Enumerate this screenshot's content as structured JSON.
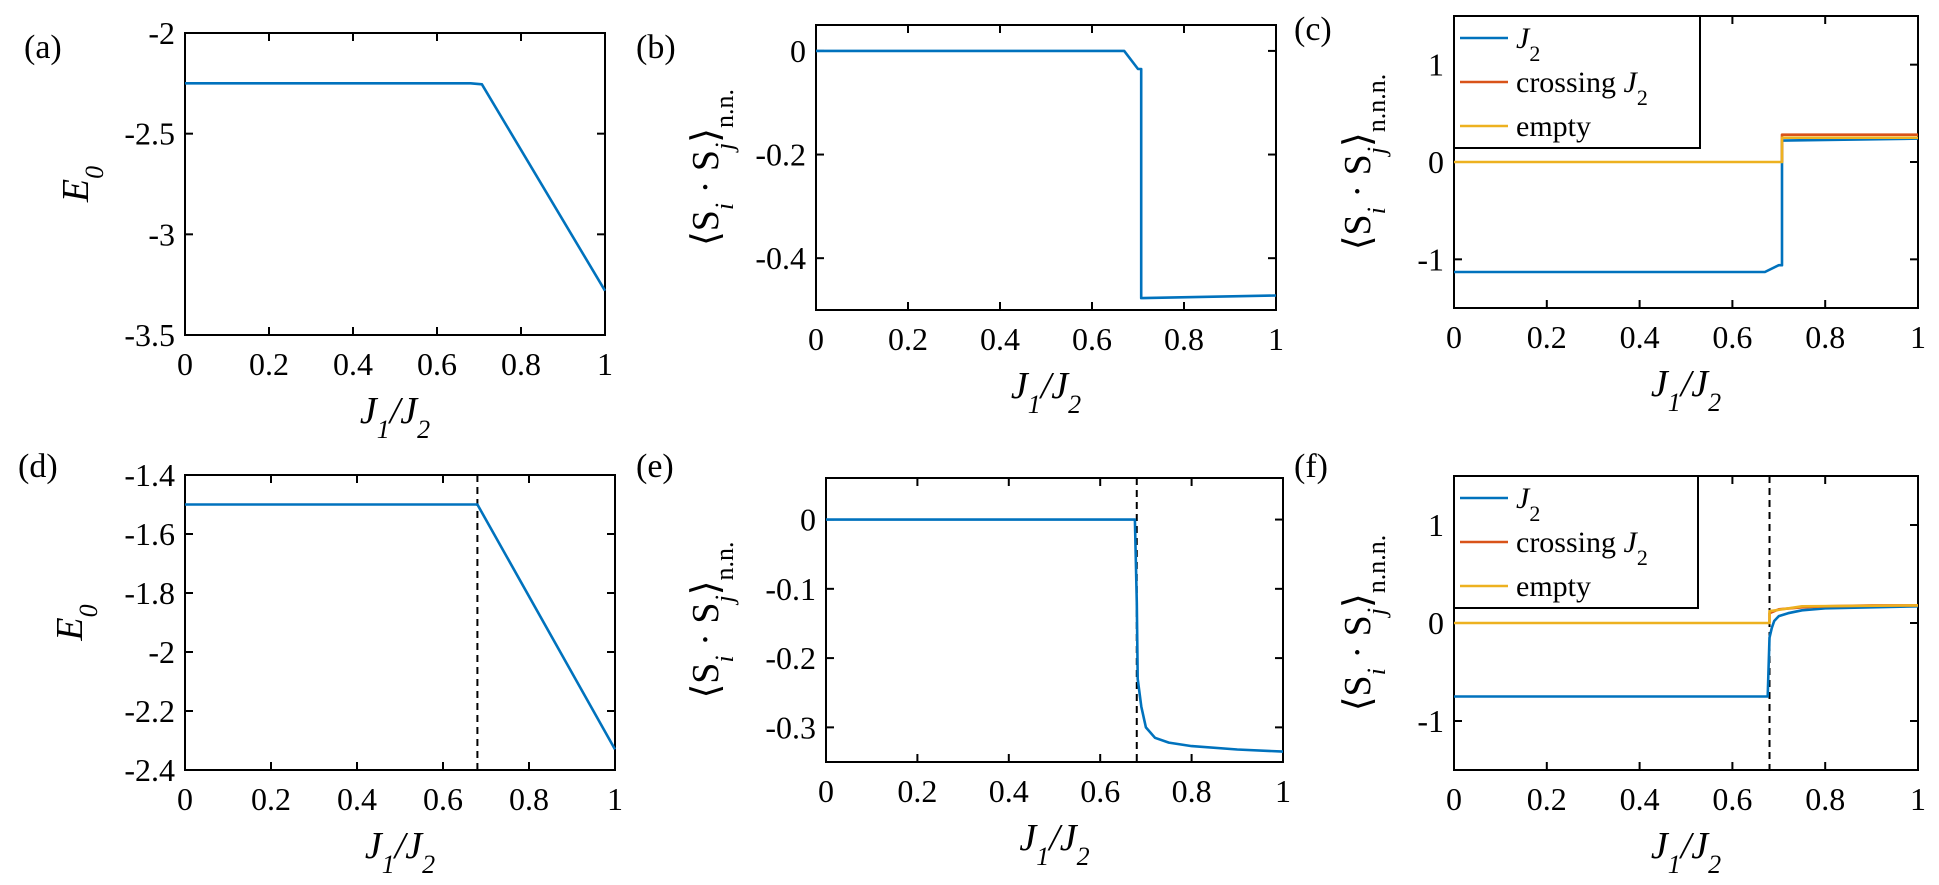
{
  "colors": {
    "J2": "#0072BD",
    "crossing": "#D95319",
    "empty": "#EDB120",
    "axis": "#000000",
    "marker_line": "#000000"
  },
  "chart_data": [
    {
      "panel": "(a)",
      "type": "line",
      "xlabel": "J_1/J_2",
      "ylabel": "E_0",
      "xlim": [
        0,
        1
      ],
      "ylim": [
        -3.5,
        -2
      ],
      "xticks": [
        "0",
        "0.2",
        "0.4",
        "0.6",
        "0.8",
        "1"
      ],
      "yticks": [
        "-2",
        "-2.5",
        "-3",
        "-3.5"
      ],
      "yticks_values": [
        -2,
        -2.5,
        -3,
        -3.5
      ],
      "grid": false,
      "legend": null,
      "vline": null,
      "series": [
        {
          "color_key": "J2",
          "x": [
            0,
            0.2,
            0.4,
            0.6,
            0.68,
            0.707,
            1.0
          ],
          "y": [
            -2.25,
            -2.25,
            -2.25,
            -2.25,
            -2.25,
            -2.255,
            -3.28
          ]
        }
      ]
    },
    {
      "panel": "(b)",
      "type": "line",
      "xlabel": "J_1/J_2",
      "ylabel": "⟨S_i · S_j⟩_n.n.",
      "xlim": [
        0,
        1
      ],
      "ylim": [
        -0.5,
        0.05
      ],
      "xticks": [
        "0",
        "0.2",
        "0.4",
        "0.6",
        "0.8",
        "1"
      ],
      "yticks": [
        "0",
        "-0.2",
        "-0.4"
      ],
      "yticks_values": [
        0,
        -0.2,
        -0.4
      ],
      "grid": false,
      "legend": null,
      "vline": null,
      "series": [
        {
          "color_key": "J2",
          "x": [
            0,
            0.3,
            0.6,
            0.67,
            0.7,
            0.707,
            0.707,
            1.0
          ],
          "y": [
            0,
            0,
            0,
            0,
            -0.035,
            -0.035,
            -0.477,
            -0.472
          ]
        }
      ]
    },
    {
      "panel": "(c)",
      "type": "line",
      "xlabel": "J_1/J_2",
      "ylabel": "⟨S_i · S_j⟩_n.n.n.",
      "xlim": [
        0,
        1
      ],
      "ylim": [
        -1.5,
        1.5
      ],
      "xticks": [
        "0",
        "0.2",
        "0.4",
        "0.6",
        "0.8",
        "1"
      ],
      "yticks": [
        "1",
        "0",
        "-1"
      ],
      "yticks_values": [
        1,
        0,
        -1
      ],
      "grid": false,
      "legend": {
        "placement": "top-left",
        "entries": [
          "J_2",
          "crossing J_2",
          "empty"
        ]
      },
      "vline": null,
      "series": [
        {
          "name": "J_2",
          "color_key": "J2",
          "x": [
            0,
            0.67,
            0.7,
            0.707,
            0.707,
            1.0
          ],
          "y": [
            -1.13,
            -1.13,
            -1.06,
            -1.06,
            0.22,
            0.24
          ]
        },
        {
          "name": "crossing J_2",
          "color_key": "crossing",
          "x": [
            0.707,
            0.707,
            1.0
          ],
          "y": [
            0.0,
            0.28,
            0.28
          ]
        },
        {
          "name": "empty",
          "color_key": "empty",
          "x": [
            0,
            0.707,
            0.707,
            1.0
          ],
          "y": [
            0,
            0,
            0.25,
            0.25
          ]
        }
      ]
    },
    {
      "panel": "(d)",
      "type": "line",
      "xlabel": "J_1/J_2",
      "ylabel": "E_0",
      "xlim": [
        0,
        1
      ],
      "ylim": [
        -2.4,
        -1.4
      ],
      "xticks": [
        "0",
        "0.2",
        "0.4",
        "0.6",
        "0.8",
        "1"
      ],
      "yticks": [
        "-1.4",
        "-1.6",
        "-1.8",
        "-2",
        "-2.2",
        "-2.4"
      ],
      "yticks_values": [
        -1.4,
        -1.6,
        -1.8,
        -2,
        -2.2,
        -2.4
      ],
      "grid": false,
      "legend": null,
      "vline": 0.68,
      "series": [
        {
          "color_key": "J2",
          "x": [
            0,
            0.3,
            0.6,
            0.68,
            1.0
          ],
          "y": [
            -1.5,
            -1.5,
            -1.5,
            -1.5,
            -2.33
          ]
        }
      ]
    },
    {
      "panel": "(e)",
      "type": "line",
      "xlabel": "J_1/J_2",
      "ylabel": "⟨S_i · S_j⟩_n.n.",
      "xlim": [
        0,
        1
      ],
      "ylim": [
        -0.35,
        0.06
      ],
      "xticks": [
        "0",
        "0.2",
        "0.4",
        "0.6",
        "0.8",
        "1"
      ],
      "yticks": [
        "0",
        "-0.1",
        "-0.2",
        "-0.3"
      ],
      "yticks_values": [
        0,
        -0.1,
        -0.2,
        -0.3
      ],
      "grid": false,
      "legend": null,
      "vline": 0.68,
      "series": [
        {
          "color_key": "J2",
          "x": [
            0,
            0.3,
            0.6,
            0.676,
            0.68,
            0.682,
            0.69,
            0.7,
            0.72,
            0.75,
            0.8,
            0.9,
            1.0
          ],
          "y": [
            0,
            0,
            0,
            0,
            -0.12,
            -0.23,
            -0.27,
            -0.3,
            -0.315,
            -0.322,
            -0.327,
            -0.332,
            -0.335
          ]
        }
      ]
    },
    {
      "panel": "(f)",
      "type": "line",
      "xlabel": "J_1/J_2",
      "ylabel": "⟨S_i · S_j⟩_n.n.n.",
      "xlim": [
        0,
        1
      ],
      "ylim": [
        -1.5,
        1.5
      ],
      "xticks": [
        "0",
        "0.2",
        "0.4",
        "0.6",
        "0.8",
        "1"
      ],
      "yticks": [
        "1",
        "0",
        "-1"
      ],
      "yticks_values": [
        1,
        0,
        -1
      ],
      "grid": false,
      "legend": {
        "placement": "top-left",
        "entries": [
          "J_2",
          "crossing J_2",
          "empty"
        ]
      },
      "vline": 0.68,
      "series": [
        {
          "name": "J_2",
          "color_key": "J2",
          "x": [
            0,
            0.676,
            0.68,
            0.685,
            0.69,
            0.7,
            0.72,
            0.75,
            0.8,
            0.9,
            1.0
          ],
          "y": [
            -0.75,
            -0.75,
            -0.15,
            -0.05,
            0.02,
            0.07,
            0.1,
            0.13,
            0.15,
            0.16,
            0.17
          ]
        },
        {
          "name": "crossing J_2",
          "color_key": "crossing",
          "x": [
            0.68,
            0.68,
            0.7,
            0.75,
            0.8,
            0.9,
            1.0
          ],
          "y": [
            0,
            0.1,
            0.14,
            0.16,
            0.17,
            0.18,
            0.18
          ]
        },
        {
          "name": "empty",
          "color_key": "empty",
          "x": [
            0,
            0.68,
            0.68,
            0.75,
            1.0
          ],
          "y": [
            0,
            0,
            0.12,
            0.17,
            0.18
          ]
        }
      ]
    }
  ]
}
